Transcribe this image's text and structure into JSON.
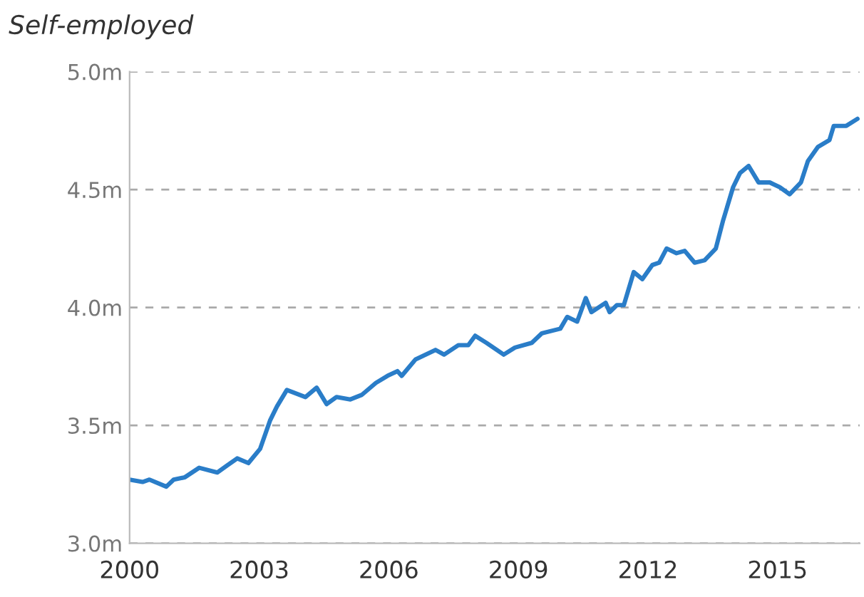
{
  "chart_data": {
    "type": "line",
    "title": "Self-employed",
    "x": [
      2000.0,
      2000.3,
      2000.46,
      2000.85,
      2001.02,
      2001.28,
      2001.61,
      2002.03,
      2002.26,
      2002.49,
      2002.75,
      2003.02,
      2003.25,
      2003.41,
      2003.64,
      2004.07,
      2004.33,
      2004.56,
      2004.79,
      2005.11,
      2005.38,
      2005.7,
      2005.97,
      2006.2,
      2006.3,
      2006.62,
      2007.08,
      2007.28,
      2007.61,
      2007.84,
      2008.0,
      2008.26,
      2008.66,
      2008.92,
      2009.31,
      2009.54,
      2009.97,
      2010.13,
      2010.36,
      2010.56,
      2010.69,
      2011.02,
      2011.11,
      2011.28,
      2011.44,
      2011.67,
      2011.87,
      2012.1,
      2012.26,
      2012.43,
      2012.66,
      2012.85,
      2013.08,
      2013.31,
      2013.57,
      2013.74,
      2013.97,
      2014.13,
      2014.33,
      2014.56,
      2014.82,
      2015.05,
      2015.28,
      2015.54,
      2015.7,
      2015.93,
      2016.2,
      2016.3,
      2016.59,
      2016.85
    ],
    "series": [
      {
        "color": "#2a7dc8",
        "values": [
          3.27,
          3.26,
          3.27,
          3.24,
          3.27,
          3.28,
          3.32,
          3.3,
          3.33,
          3.36,
          3.34,
          3.4,
          3.52,
          3.58,
          3.65,
          3.62,
          3.66,
          3.59,
          3.62,
          3.61,
          3.63,
          3.68,
          3.71,
          3.73,
          3.71,
          3.78,
          3.82,
          3.8,
          3.84,
          3.84,
          3.88,
          3.85,
          3.8,
          3.83,
          3.85,
          3.89,
          3.91,
          3.96,
          3.94,
          4.04,
          3.98,
          4.02,
          3.98,
          4.01,
          4.01,
          4.15,
          4.12,
          4.18,
          4.19,
          4.25,
          4.23,
          4.24,
          4.19,
          4.2,
          4.25,
          4.37,
          4.51,
          4.57,
          4.6,
          4.53,
          4.53,
          4.51,
          4.48,
          4.53,
          4.62,
          4.68,
          4.71,
          4.77,
          4.77,
          4.8
        ]
      }
    ],
    "xlim": [
      2000,
      2016.9
    ],
    "xticks": [
      2000,
      2003,
      2006,
      2009,
      2012,
      2015
    ],
    "ylim": [
      3.0,
      5.0
    ],
    "yticks": [
      {
        "value": 3.0,
        "label": "3.0m"
      },
      {
        "value": 3.5,
        "label": "3.5m"
      },
      {
        "value": 4.0,
        "label": "4.0m"
      },
      {
        "value": 4.5,
        "label": "4.5m"
      },
      {
        "value": 5.0,
        "label": "5.0m"
      }
    ],
    "grid": "y",
    "line_style": "solid"
  }
}
